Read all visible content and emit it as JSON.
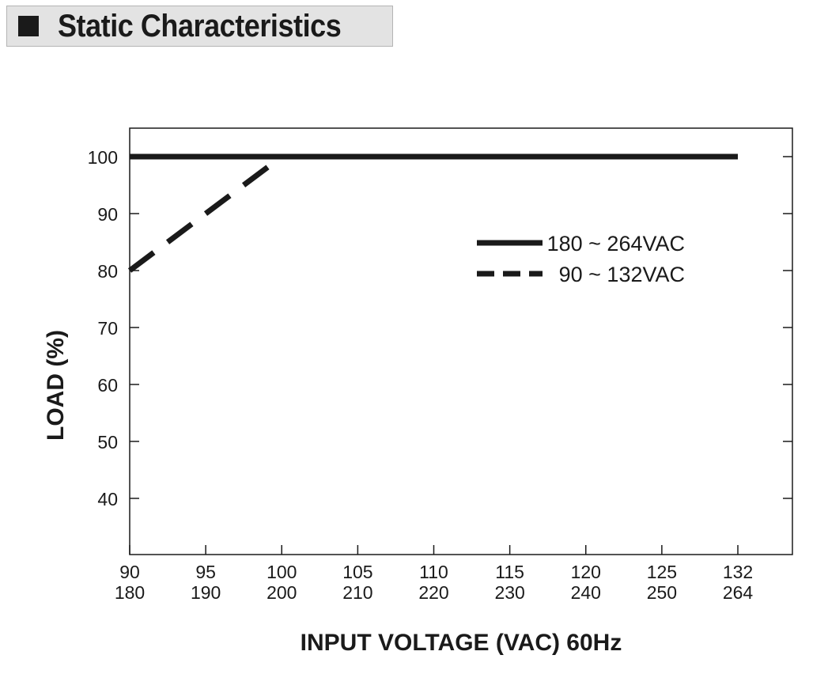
{
  "header": {
    "title": "Static Characteristics"
  },
  "chart_data": {
    "type": "line",
    "xlabel": "INPUT VOLTAGE (VAC) 60Hz",
    "ylabel": "LOAD (%)",
    "x_ticks_primary": [
      "90",
      "95",
      "100",
      "105",
      "110",
      "115",
      "120",
      "125",
      "132"
    ],
    "x_ticks_secondary": [
      "180",
      "190",
      "200",
      "210",
      "220",
      "230",
      "240",
      "250",
      "264"
    ],
    "y_ticks": [
      "40",
      "50",
      "60",
      "70",
      "80",
      "90",
      "100"
    ],
    "y_tick_values": [
      40,
      50,
      60,
      70,
      80,
      90,
      100
    ],
    "ylim": [
      30,
      105
    ],
    "grid": false,
    "legend_position": "right",
    "series": [
      {
        "name": "180 ~ 264VAC",
        "style": "solid",
        "color": "#1a1a1a",
        "points": [
          [
            0,
            100
          ],
          [
            8,
            100
          ]
        ]
      },
      {
        "name": "90 ~ 132VAC",
        "style": "dashed",
        "color": "#1a1a1a",
        "points": [
          [
            0,
            80
          ],
          [
            2,
            100
          ]
        ]
      }
    ]
  }
}
